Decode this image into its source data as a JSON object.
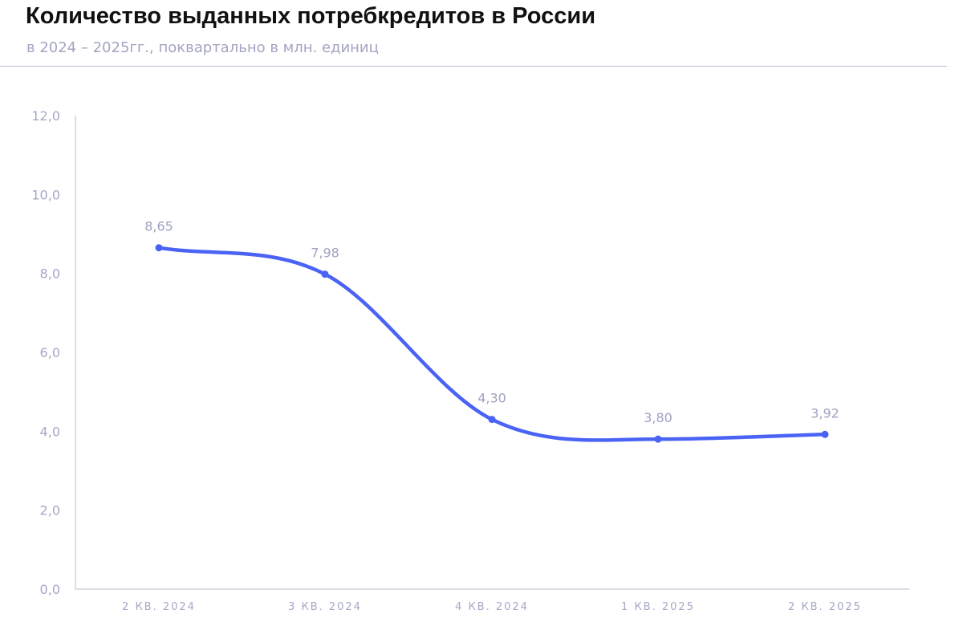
{
  "chart_data": {
    "type": "line",
    "title": "Количество выданных потребкредитов в России",
    "subtitle": "в 2024 – 2025гг., поквартально в млн. единиц",
    "categories": [
      "2 КВ. 2024",
      "3 КВ. 2024",
      "4 КВ. 2024",
      "1 КВ. 2025",
      "2 КВ. 2025"
    ],
    "series": [
      {
        "values": [
          8.65,
          7.98,
          4.3,
          3.8,
          3.92
        ],
        "labels": [
          "8,65",
          "7,98",
          "4,30",
          "3,80",
          "3,92"
        ]
      }
    ],
    "yticks": [
      "0,0",
      "2,0",
      "4,0",
      "6,0",
      "8,0",
      "10,0",
      "12,0"
    ],
    "ylim": [
      0,
      12
    ],
    "grid": false,
    "line_color": "#4a63f5",
    "smooth": true
  }
}
